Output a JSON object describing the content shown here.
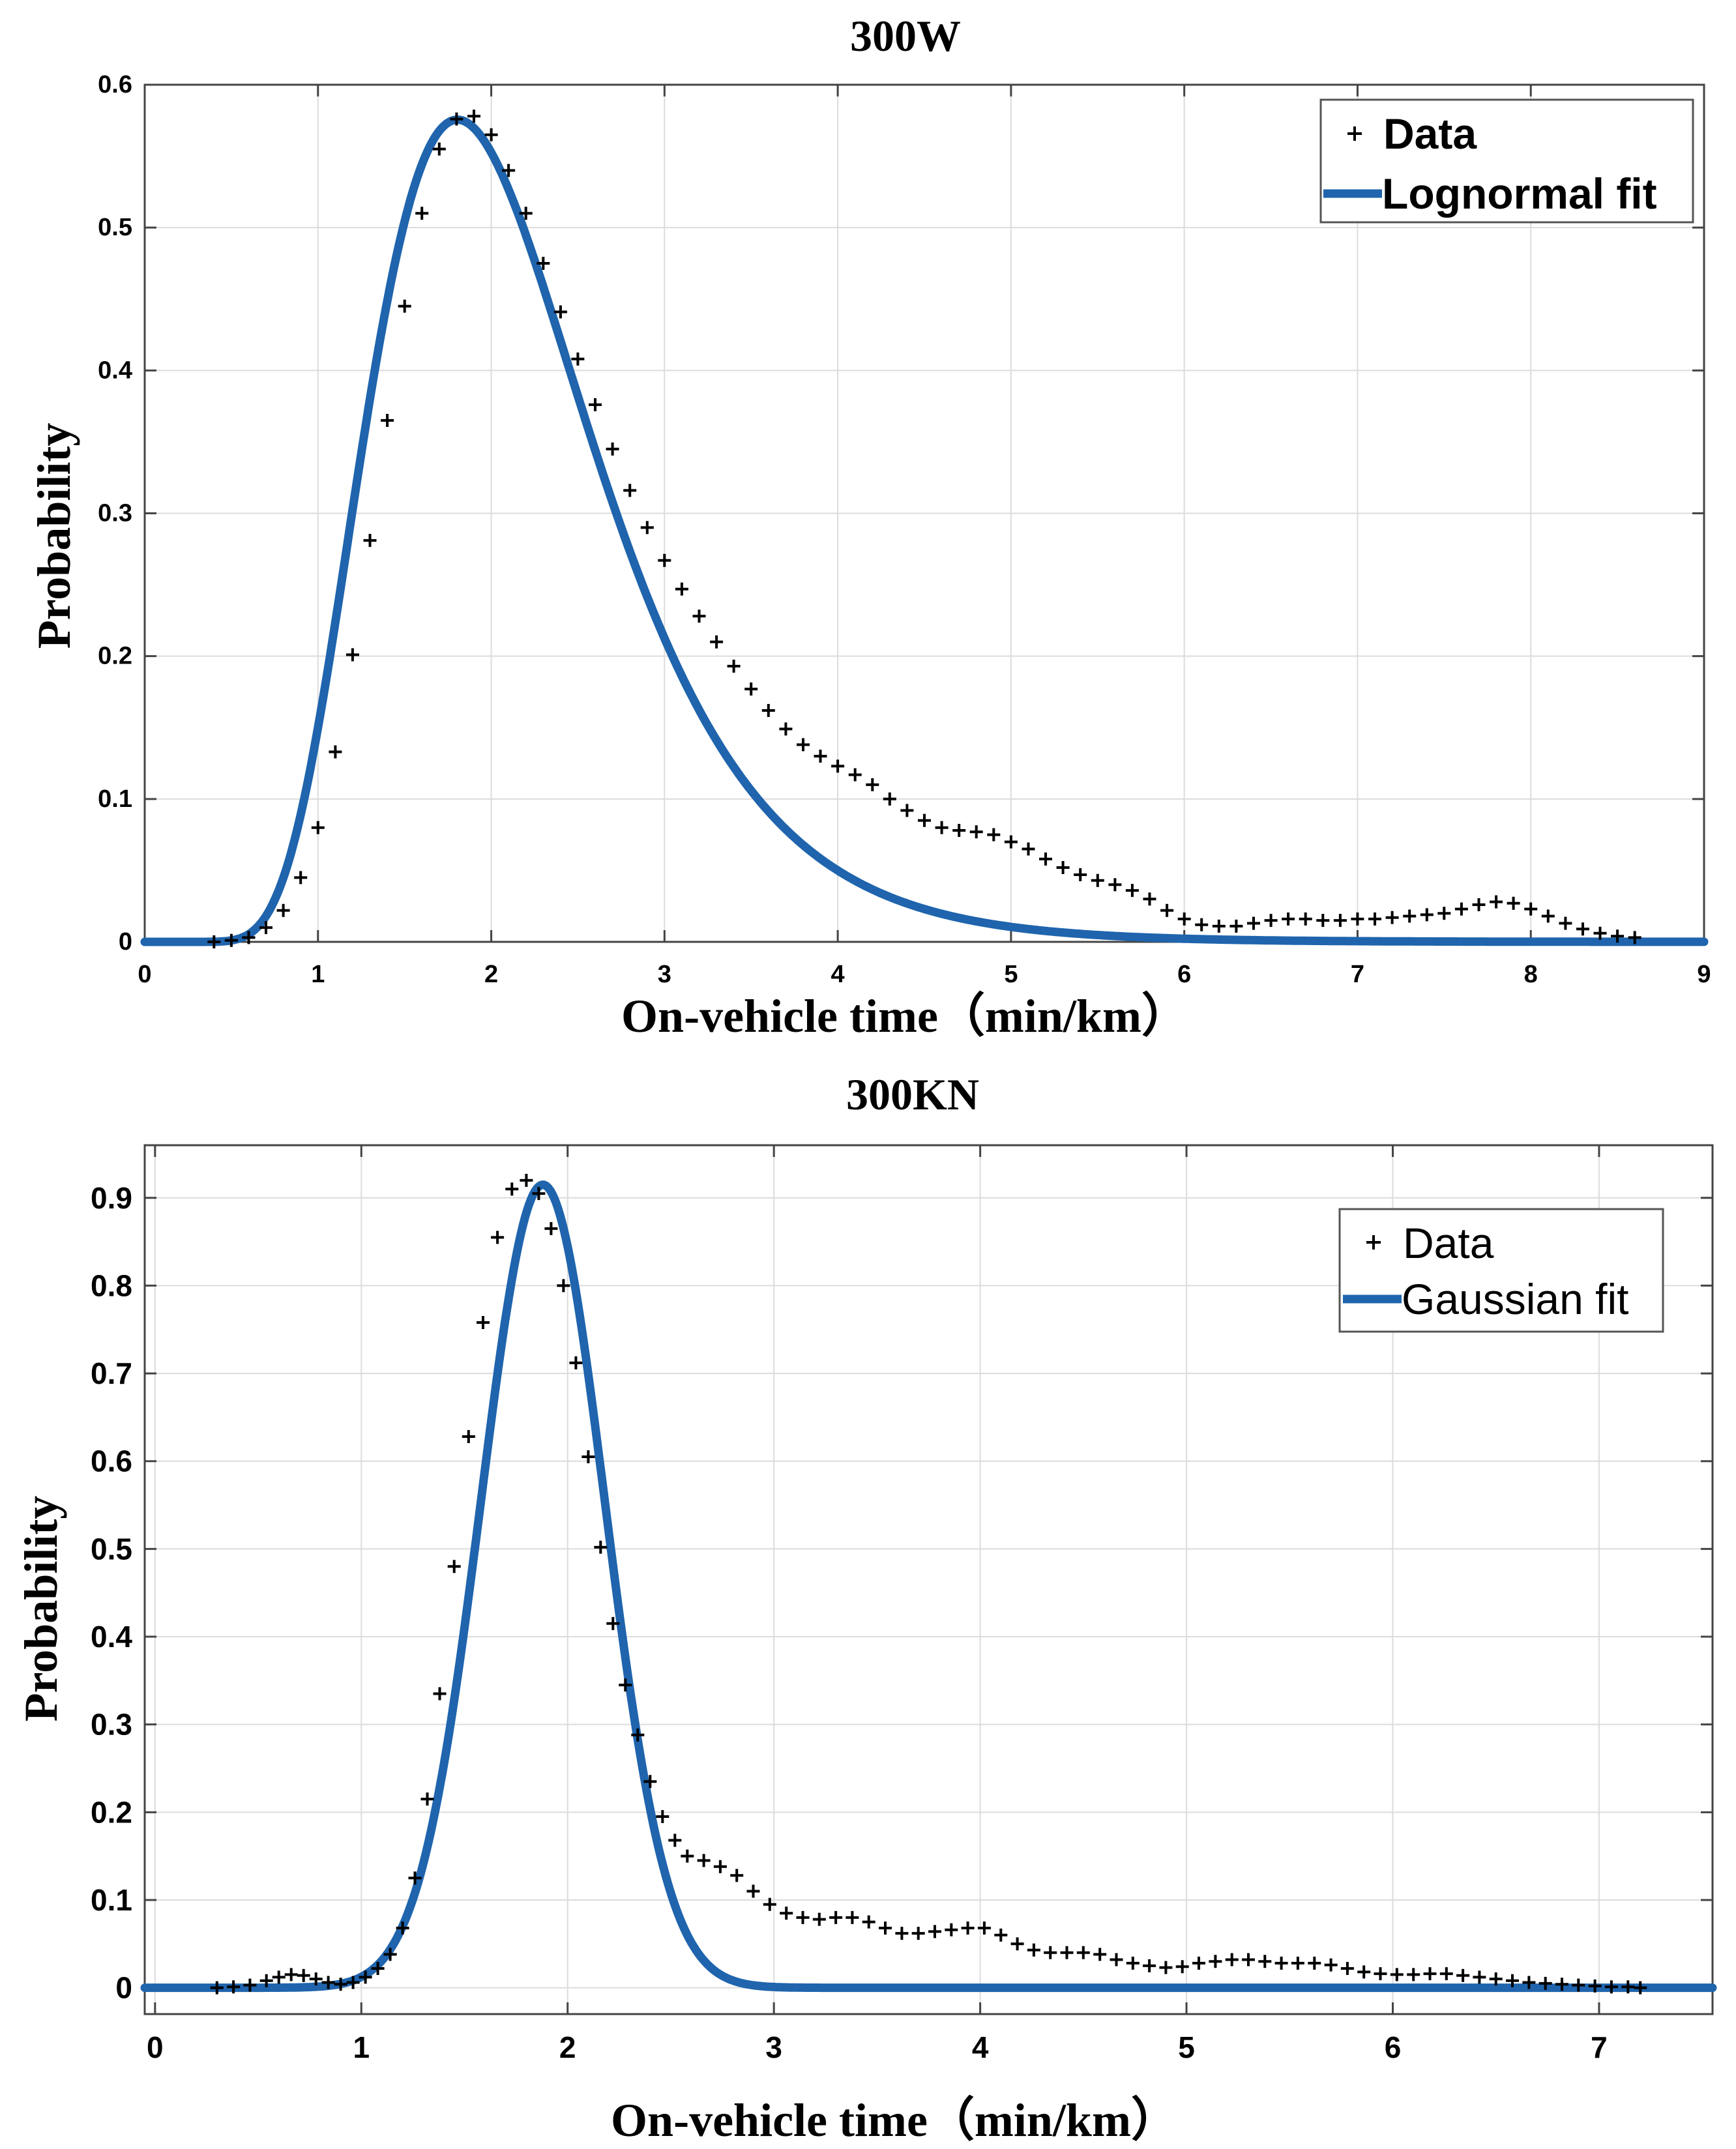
{
  "chart_data": [
    {
      "type": "line",
      "title": "300W",
      "xlabel": "On-vehicle time（min/km）",
      "ylabel": "Probability",
      "xlim": [
        0,
        9
      ],
      "ylim": [
        0,
        0.6
      ],
      "x_ticks": [
        "0",
        "1",
        "2",
        "3",
        "4",
        "5",
        "6",
        "7",
        "8",
        "9"
      ],
      "y_ticks": [
        "0",
        "0.1",
        "0.2",
        "0.3",
        "0.4",
        "0.5",
        "0.6"
      ],
      "grid": true,
      "legend": {
        "position": "top-right",
        "entries": [
          "Data",
          "Lognormal fit"
        ]
      },
      "colors": {
        "fit": "#1f64ad",
        "data": "#000000",
        "grid": "#dcdcdc"
      },
      "series": [
        {
          "name": "Data",
          "marker": "+",
          "x": [
            0.4,
            0.5,
            0.6,
            0.7,
            0.8,
            0.9,
            1.0,
            1.1,
            1.2,
            1.3,
            1.4,
            1.5,
            1.6,
            1.7,
            1.8,
            1.9,
            2.0,
            2.1,
            2.2,
            2.3,
            2.4,
            2.5,
            2.6,
            2.7,
            2.8,
            2.9,
            3.0,
            3.1,
            3.2,
            3.3,
            3.4,
            3.5,
            3.6,
            3.7,
            3.8,
            3.9,
            4.0,
            4.1,
            4.2,
            4.3,
            4.4,
            4.5,
            4.6,
            4.7,
            4.8,
            4.9,
            5.0,
            5.1,
            5.2,
            5.3,
            5.4,
            5.5,
            5.6,
            5.7,
            5.8,
            5.9,
            6.0,
            6.1,
            6.2,
            6.3,
            6.4,
            6.5,
            6.6,
            6.7,
            6.8,
            6.9,
            7.0,
            7.1,
            7.2,
            7.3,
            7.4,
            7.5,
            7.6,
            7.7,
            7.8,
            7.9,
            8.0,
            8.1,
            8.2,
            8.3,
            8.4,
            8.5,
            8.6
          ],
          "y": [
            0.0,
            0.001,
            0.003,
            0.01,
            0.022,
            0.045,
            0.08,
            0.133,
            0.201,
            0.281,
            0.365,
            0.445,
            0.51,
            0.555,
            0.576,
            0.578,
            0.565,
            0.54,
            0.51,
            0.475,
            0.441,
            0.408,
            0.376,
            0.345,
            0.316,
            0.29,
            0.267,
            0.247,
            0.228,
            0.21,
            0.193,
            0.177,
            0.162,
            0.149,
            0.138,
            0.13,
            0.123,
            0.117,
            0.11,
            0.1,
            0.092,
            0.085,
            0.08,
            0.078,
            0.077,
            0.075,
            0.07,
            0.065,
            0.058,
            0.052,
            0.047,
            0.043,
            0.04,
            0.036,
            0.03,
            0.022,
            0.016,
            0.012,
            0.011,
            0.011,
            0.013,
            0.015,
            0.016,
            0.016,
            0.015,
            0.015,
            0.016,
            0.016,
            0.017,
            0.018,
            0.019,
            0.02,
            0.023,
            0.026,
            0.028,
            0.027,
            0.023,
            0.018,
            0.013,
            0.009,
            0.006,
            0.004,
            0.003
          ]
        },
        {
          "name": "Lognormal fit",
          "dist": "lognormal",
          "mu": 0.72,
          "sigma": 0.36,
          "x_range": [
            0,
            9
          ]
        }
      ]
    },
    {
      "type": "line",
      "title": "300KN",
      "xlabel": "On-vehicle time（min/km）",
      "ylabel": "Probability",
      "xlim": [
        -0.05,
        7.55
      ],
      "ylim": [
        -0.03,
        0.96
      ],
      "x_ticks": [
        "0",
        "1",
        "2",
        "3",
        "4",
        "5",
        "6",
        "7"
      ],
      "y_ticks": [
        "0",
        "0.1",
        "0.2",
        "0.3",
        "0.4",
        "0.5",
        "0.6",
        "0.7",
        "0.8",
        "0.9"
      ],
      "grid": true,
      "legend": {
        "position": "top-right",
        "entries": [
          "Data",
          "Gaussian fit"
        ]
      },
      "colors": {
        "fit": "#1f64ad",
        "data": "#000000",
        "grid": "#dcdcdc"
      },
      "series": [
        {
          "name": "Data",
          "marker": "+",
          "x": [
            0.3,
            0.38,
            0.46,
            0.54,
            0.6,
            0.66,
            0.72,
            0.78,
            0.84,
            0.9,
            0.96,
            1.02,
            1.08,
            1.14,
            1.2,
            1.26,
            1.32,
            1.38,
            1.45,
            1.52,
            1.59,
            1.66,
            1.73,
            1.8,
            1.86,
            1.92,
            1.98,
            2.04,
            2.1,
            2.16,
            2.22,
            2.28,
            2.34,
            2.4,
            2.46,
            2.52,
            2.58,
            2.66,
            2.74,
            2.82,
            2.9,
            2.98,
            3.06,
            3.14,
            3.22,
            3.3,
            3.38,
            3.46,
            3.54,
            3.62,
            3.7,
            3.78,
            3.86,
            3.94,
            4.02,
            4.1,
            4.18,
            4.26,
            4.34,
            4.42,
            4.5,
            4.58,
            4.66,
            4.74,
            4.82,
            4.9,
            4.98,
            5.06,
            5.14,
            5.22,
            5.3,
            5.38,
            5.46,
            5.54,
            5.62,
            5.7,
            5.78,
            5.86,
            5.94,
            6.02,
            6.1,
            6.18,
            6.26,
            6.34,
            6.42,
            6.5,
            6.58,
            6.66,
            6.74,
            6.82,
            6.9,
            6.98,
            7.06,
            7.14,
            7.2
          ],
          "y": [
            0.0,
            0.001,
            0.003,
            0.008,
            0.012,
            0.015,
            0.014,
            0.01,
            0.006,
            0.004,
            0.006,
            0.012,
            0.022,
            0.038,
            0.068,
            0.125,
            0.215,
            0.335,
            0.48,
            0.628,
            0.758,
            0.855,
            0.91,
            0.92,
            0.905,
            0.865,
            0.8,
            0.712,
            0.605,
            0.502,
            0.415,
            0.345,
            0.288,
            0.235,
            0.195,
            0.168,
            0.15,
            0.145,
            0.138,
            0.128,
            0.11,
            0.095,
            0.085,
            0.08,
            0.078,
            0.08,
            0.08,
            0.075,
            0.068,
            0.062,
            0.062,
            0.064,
            0.066,
            0.068,
            0.068,
            0.06,
            0.05,
            0.043,
            0.04,
            0.04,
            0.04,
            0.038,
            0.032,
            0.028,
            0.025,
            0.023,
            0.024,
            0.028,
            0.03,
            0.032,
            0.032,
            0.03,
            0.028,
            0.028,
            0.028,
            0.026,
            0.022,
            0.018,
            0.016,
            0.015,
            0.015,
            0.016,
            0.016,
            0.014,
            0.012,
            0.01,
            0.008,
            0.006,
            0.005,
            0.004,
            0.003,
            0.002,
            0.001,
            0.001,
            0.0
          ]
        },
        {
          "name": "Gaussian fit",
          "dist": "gaussian",
          "amplitude": 0.915,
          "mean": 1.88,
          "sigma": 0.3,
          "x_range": [
            -0.05,
            7.55
          ]
        }
      ]
    }
  ]
}
